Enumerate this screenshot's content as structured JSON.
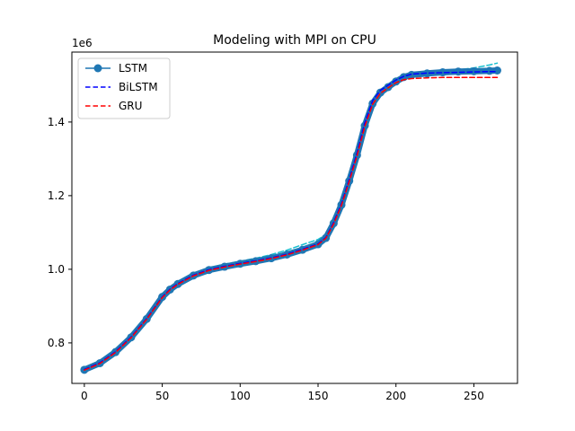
{
  "chart_data": {
    "type": "line",
    "title": "Modeling with MPI on CPU",
    "xlabel": "",
    "ylabel": "",
    "y_offset_label": "1e6",
    "xlim": [
      -8,
      278
    ],
    "ylim": [
      690000,
      1590000
    ],
    "x_ticks": [
      0,
      50,
      100,
      150,
      200,
      250
    ],
    "y_ticks": [
      800000,
      1000000,
      1200000,
      1400000
    ],
    "x_tick_labels": [
      "0",
      "50",
      "100",
      "150",
      "200",
      "250"
    ],
    "y_tick_labels": [
      "0.8",
      "1.0",
      "1.2",
      "1.4"
    ],
    "legend_position": "upper-left",
    "grid": false,
    "legend": [
      {
        "name": "LSTM",
        "color": "#1f77b4",
        "style": "solid-marker"
      },
      {
        "name": "BiLSTM",
        "color": "#0000ff",
        "style": "dashed"
      },
      {
        "name": "GRU",
        "color": "#ff0000",
        "style": "dashed"
      }
    ],
    "series": [
      {
        "name": "LSTM",
        "color": "#1f77b4",
        "x": [
          0,
          10,
          20,
          30,
          40,
          50,
          55,
          60,
          70,
          80,
          90,
          100,
          110,
          120,
          130,
          140,
          150,
          155,
          160,
          165,
          170,
          175,
          180,
          185,
          190,
          195,
          200,
          205,
          210,
          220,
          230,
          240,
          250,
          260,
          265
        ],
        "y": [
          727000,
          745000,
          775000,
          815000,
          865000,
          925000,
          945000,
          960000,
          983000,
          998000,
          1007000,
          1015000,
          1022000,
          1030000,
          1040000,
          1053000,
          1068000,
          1085000,
          1125000,
          1175000,
          1240000,
          1310000,
          1390000,
          1450000,
          1480000,
          1495000,
          1510000,
          1522000,
          1528000,
          1532000,
          1535000,
          1537000,
          1538000,
          1539000,
          1540000
        ]
      },
      {
        "name": "BiLSTM",
        "color": "#0000ff",
        "x": [
          0,
          10,
          20,
          30,
          40,
          50,
          55,
          60,
          70,
          80,
          90,
          100,
          110,
          120,
          130,
          140,
          150,
          155,
          160,
          165,
          170,
          175,
          180,
          185,
          190,
          195,
          200,
          205,
          210,
          220,
          230,
          240,
          250,
          260,
          265
        ],
        "y": [
          728000,
          746000,
          776000,
          816000,
          866000,
          925000,
          946000,
          961000,
          984000,
          999000,
          1008000,
          1016000,
          1023000,
          1031000,
          1041000,
          1054000,
          1069000,
          1086000,
          1127000,
          1178000,
          1244000,
          1316000,
          1398000,
          1458000,
          1486000,
          1500000,
          1514000,
          1524000,
          1530000,
          1533000,
          1534000,
          1535000,
          1536000,
          1537000,
          1537000
        ]
      },
      {
        "name": "GRU",
        "color": "#ff0000",
        "x": [
          0,
          10,
          20,
          30,
          40,
          50,
          55,
          60,
          70,
          80,
          90,
          100,
          110,
          120,
          130,
          140,
          150,
          155,
          160,
          165,
          170,
          175,
          180,
          185,
          190,
          195,
          200,
          205,
          210,
          220,
          230,
          240,
          250,
          260,
          265
        ],
        "y": [
          726000,
          744000,
          774000,
          814000,
          864000,
          923000,
          944000,
          959000,
          982000,
          997000,
          1006000,
          1014000,
          1021000,
          1029000,
          1039000,
          1052000,
          1067000,
          1084000,
          1123000,
          1173000,
          1238000,
          1308000,
          1388000,
          1448000,
          1478000,
          1493000,
          1507000,
          1515000,
          1518000,
          1520000,
          1521000,
          1521000,
          1521000,
          1521000,
          1521000
        ]
      },
      {
        "name": "",
        "color": "#17becf",
        "x": [
          0,
          10,
          20,
          30,
          40,
          50,
          55,
          60,
          70,
          80,
          90,
          100,
          110,
          120,
          130,
          140,
          150,
          155,
          160,
          165,
          170,
          175,
          180,
          185,
          190,
          195,
          200,
          205,
          210,
          220,
          230,
          240,
          250,
          260,
          265
        ],
        "y": [
          732000,
          750000,
          780000,
          820000,
          870000,
          932000,
          952000,
          966000,
          989000,
          1004000,
          1014000,
          1022000,
          1030000,
          1040000,
          1052000,
          1067000,
          1081000,
          1094000,
          1130000,
          1178000,
          1240000,
          1310000,
          1388000,
          1446000,
          1476000,
          1492000,
          1506000,
          1518000,
          1526000,
          1532000,
          1538000,
          1542000,
          1547000,
          1555000,
          1560000
        ]
      }
    ]
  }
}
